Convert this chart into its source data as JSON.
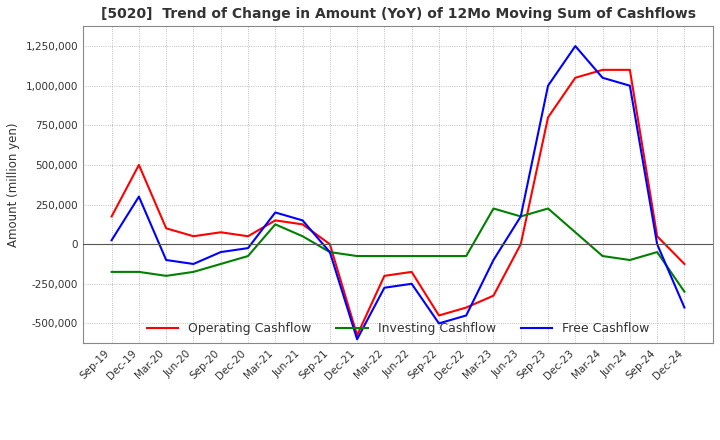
{
  "title": "[5020]  Trend of Change in Amount (YoY) of 12Mo Moving Sum of Cashflows",
  "ylabel": "Amount (million yen)",
  "title_color": "#333333",
  "background_color": "#ffffff",
  "grid_color": "#aaaaaa",
  "x_labels": [
    "Sep-19",
    "Dec-19",
    "Mar-20",
    "Jun-20",
    "Sep-20",
    "Dec-20",
    "Mar-21",
    "Jun-21",
    "Sep-21",
    "Dec-21",
    "Mar-22",
    "Jun-22",
    "Sep-22",
    "Dec-22",
    "Mar-23",
    "Jun-23",
    "Sep-23",
    "Dec-23",
    "Mar-24",
    "Jun-24",
    "Sep-24",
    "Dec-24"
  ],
  "operating": [
    175000,
    500000,
    100000,
    50000,
    75000,
    50000,
    150000,
    125000,
    0,
    -575000,
    -200000,
    -175000,
    -450000,
    -400000,
    -325000,
    0,
    800000,
    1050000,
    1100000,
    1100000,
    50000,
    -125000
  ],
  "investing": [
    -175000,
    -175000,
    -200000,
    -175000,
    -125000,
    -75000,
    125000,
    50000,
    -50000,
    -75000,
    -75000,
    -75000,
    -75000,
    -75000,
    225000,
    175000,
    225000,
    75000,
    -75000,
    -100000,
    -50000,
    -300000
  ],
  "free": [
    25000,
    300000,
    -100000,
    -125000,
    -50000,
    -25000,
    200000,
    150000,
    -50000,
    -600000,
    -275000,
    -250000,
    -500000,
    -450000,
    -100000,
    175000,
    1000000,
    1250000,
    1050000,
    1000000,
    0,
    -400000
  ],
  "operating_color": "#ff0000",
  "investing_color": "#008000",
  "free_color": "#0000ff",
  "ylim": [
    -625000,
    1375000
  ],
  "yticks": [
    -500000,
    -250000,
    0,
    250000,
    500000,
    750000,
    1000000,
    1250000
  ]
}
